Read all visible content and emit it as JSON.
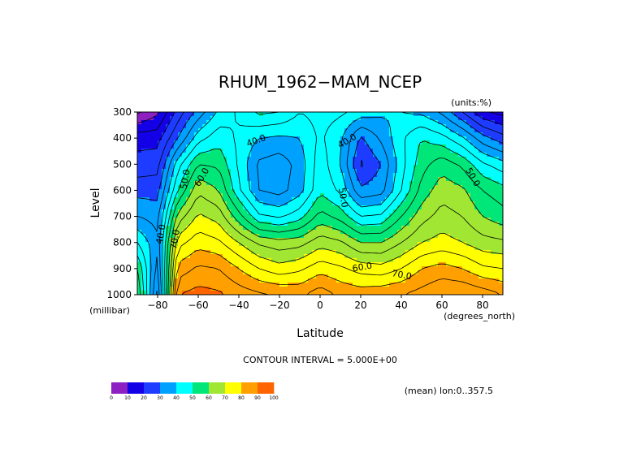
{
  "chart_data": {
    "type": "heatmap",
    "title": "RHUM_1962−MAM_NCEP",
    "units_label": "(units:%)",
    "xlabel": "Latitude",
    "ylabel": "Level",
    "x_unit_label": "(degrees_north)",
    "y_unit_label": "(millibar)",
    "xlim": [
      -90,
      90
    ],
    "ylim": [
      1000,
      300
    ],
    "x_ticks": [
      "−80",
      "−60",
      "−40",
      "−20",
      "0",
      "20",
      "40",
      "60",
      "80"
    ],
    "y_ticks": [
      "300",
      "400",
      "500",
      "600",
      "700",
      "800",
      "900",
      "1000"
    ],
    "contour_interval_text": "CONTOUR INTERVAL = 5.000E+00",
    "mean_text": "(mean) lon:0..357.5",
    "colorbar": {
      "levels": [
        "0",
        "10",
        "20",
        "30",
        "40",
        "50",
        "60",
        "70",
        "80",
        "90",
        "100"
      ],
      "colors": [
        "#8c20c0",
        "#1400e6",
        "#1e3cff",
        "#00a0ff",
        "#00ffff",
        "#00e678",
        "#a0e632",
        "#ffff00",
        "#ffa000",
        "#ff6400",
        "#ff0000"
      ]
    },
    "contour_labels": [
      "40.0",
      "40.0",
      "50.0",
      "60.0",
      "70.0",
      "40.0",
      "50.0",
      "60.0",
      "70.0",
      "50.0"
    ],
    "latitudes": [
      -90,
      -80,
      -70,
      -60,
      -50,
      -40,
      -30,
      -20,
      -10,
      0,
      10,
      20,
      30,
      40,
      50,
      60,
      70,
      80,
      90
    ],
    "levels": [
      1000,
      900,
      800,
      700,
      600,
      500,
      400,
      300
    ],
    "values": [
      [
        60,
        28,
        90,
        92,
        91,
        88,
        86,
        85,
        84,
        88,
        84,
        83,
        84,
        85,
        87,
        90,
        90,
        88,
        85
      ],
      [
        55,
        33,
        82,
        86,
        85,
        80,
        75,
        72,
        74,
        78,
        76,
        73,
        72,
        75,
        80,
        82,
        80,
        76,
        75
      ],
      [
        45,
        36,
        73,
        78,
        76,
        70,
        64,
        62,
        63,
        68,
        66,
        60,
        60,
        65,
        70,
        72,
        70,
        67,
        66
      ],
      [
        35,
        33,
        62,
        71,
        68,
        57,
        46,
        44,
        48,
        57,
        53,
        45,
        46,
        55,
        63,
        67,
        65,
        60,
        57
      ],
      [
        28,
        28,
        50,
        64,
        60,
        46,
        35,
        33,
        38,
        49,
        44,
        31,
        33,
        45,
        57,
        63,
        61,
        55,
        52
      ],
      [
        22,
        23,
        43,
        55,
        54,
        44,
        34,
        32,
        37,
        48,
        40,
        24,
        30,
        43,
        53,
        58,
        54,
        46,
        42
      ],
      [
        18,
        18,
        30,
        43,
        48,
        44,
        40,
        39,
        40,
        46,
        41,
        29,
        36,
        44,
        50,
        47,
        41,
        32,
        27
      ],
      [
        4,
        9,
        22,
        32,
        41,
        46,
        51,
        50,
        45,
        47,
        46,
        43,
        41,
        40,
        39,
        34,
        25,
        16,
        13
      ]
    ]
  }
}
